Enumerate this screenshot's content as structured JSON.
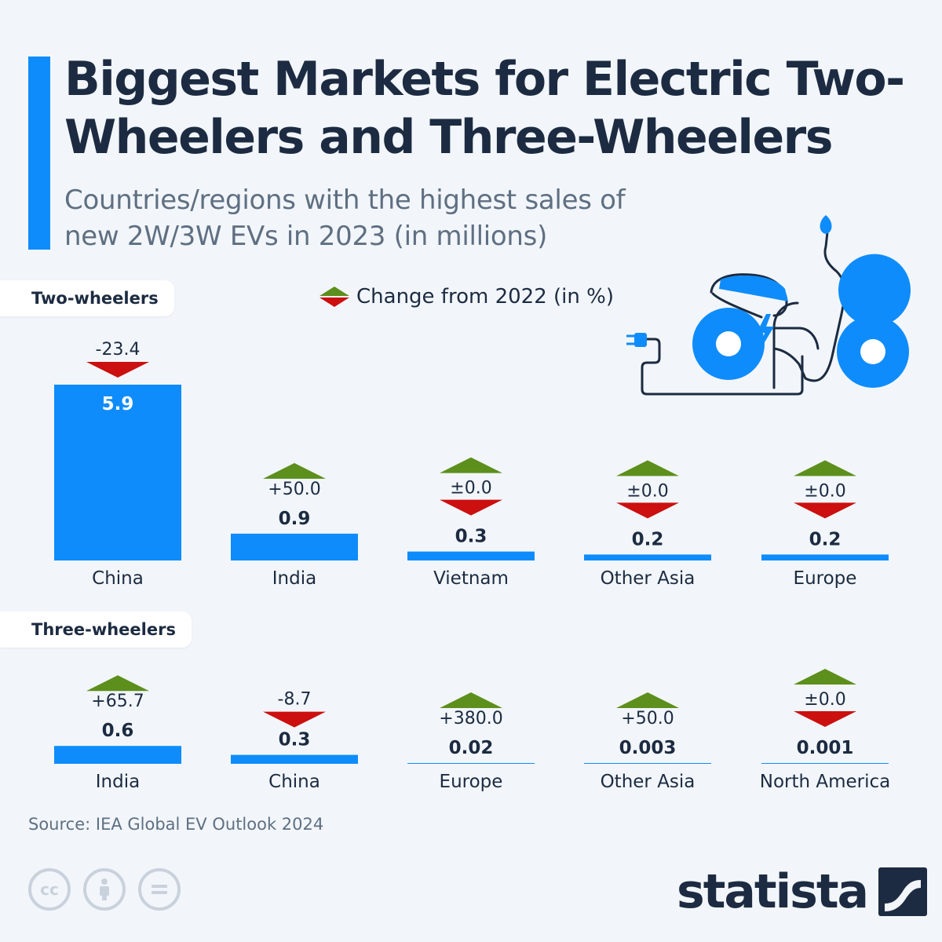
{
  "header": {
    "title": "Biggest Markets for Electric Two-Wheelers and Three-Wheelers",
    "subtitle": "Countries/regions with the highest sales of new 2W/3W EVs in 2023 (in millions)"
  },
  "legend": {
    "label": "Change from 2022 (in %)"
  },
  "colors": {
    "bar": "#0f8cfb",
    "up": "#5c8f1c",
    "down": "#cc0f0f",
    "text": "#1c2b41",
    "muted": "#5f6f82"
  },
  "chart_data": [
    {
      "type": "bar",
      "section_label": "Two-wheelers",
      "categories": [
        "China",
        "India",
        "Vietnam",
        "Other Asia",
        "Europe"
      ],
      "values": [
        5.9,
        0.9,
        0.3,
        0.2,
        0.2
      ],
      "value_labels": [
        "5.9",
        "0.9",
        "0.3",
        "0.2",
        "0.2"
      ],
      "change_labels": [
        "-23.4",
        "+50.0",
        "±0.0",
        "±0.0",
        "±0.0"
      ],
      "change_direction": [
        "down",
        "up",
        "flat",
        "flat",
        "flat"
      ]
    },
    {
      "type": "bar",
      "section_label": "Three-wheelers",
      "categories": [
        "India",
        "China",
        "Europe",
        "Other Asia",
        "North America"
      ],
      "values": [
        0.6,
        0.3,
        0.02,
        0.003,
        0.001
      ],
      "value_labels": [
        "0.6",
        "0.3",
        "0.02",
        "0.003",
        "0.001"
      ],
      "change_labels": [
        "+65.7",
        "-8.7",
        "+380.0",
        "+50.0",
        "±0.0"
      ],
      "change_direction": [
        "up",
        "down",
        "up",
        "up",
        "flat"
      ]
    }
  ],
  "footer": {
    "source": "Source: IEA Global EV Outlook 2024",
    "brand": "statista",
    "license_icons": [
      "cc-icon",
      "attribution-icon",
      "no-derivatives-icon"
    ]
  }
}
